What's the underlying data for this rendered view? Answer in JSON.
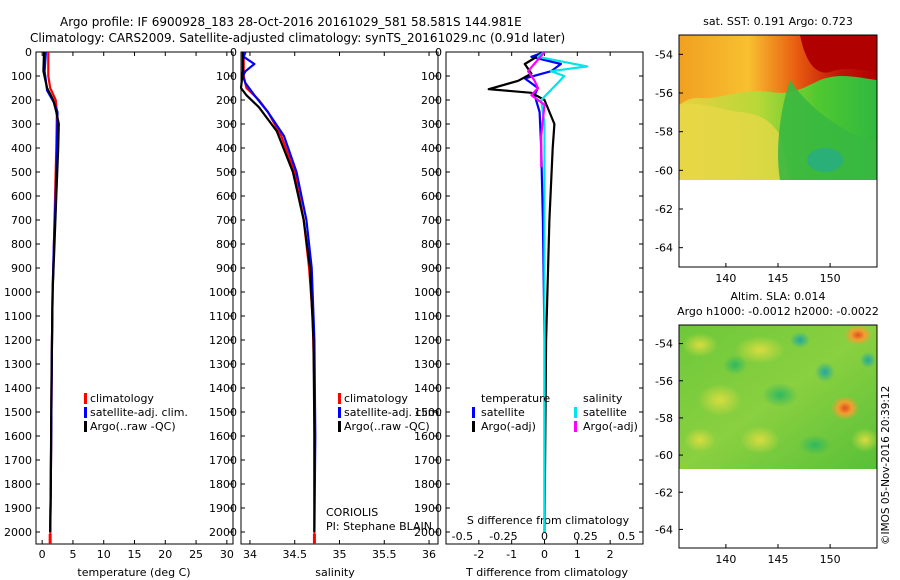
{
  "header": {
    "line1": "Argo profile: IF 6900928_183 28-Oct-2016 20161029_581 58.581S 144.981E",
    "line2": "Climatology: CARS2009. Satellite-adjusted climatology: synTS_20161029.nc (0.91d later)"
  },
  "depth_ticks": [
    "0",
    "100",
    "200",
    "300",
    "400",
    "500",
    "600",
    "700",
    "800",
    "900",
    "1000",
    "1100",
    "1200",
    "1300",
    "1400",
    "1500",
    "1600",
    "1700",
    "1800",
    "1900",
    "2000"
  ],
  "colors": {
    "climatology": "#ff0000",
    "satellite": "#0000ff",
    "argo": "#000000",
    "sat_salinity": "#00e5e5",
    "argo_salinity": "#ff00ff"
  },
  "panels": {
    "temperature": {
      "xlabel": "temperature (deg C)",
      "xticks": [
        "0",
        "5",
        "10",
        "15",
        "20",
        "25",
        "30"
      ],
      "legend": [
        "climatology",
        "satellite-adj. clim.",
        "Argo(..raw -QC)"
      ]
    },
    "salinity": {
      "xlabel": "salinity",
      "xticks": [
        "34",
        "34.5",
        "35",
        "35.5",
        "36"
      ],
      "legend": [
        "climatology",
        "satellite-adj. clim.",
        "Argo(..raw -QC)"
      ],
      "note1": "CORIOLIS",
      "note2": "PI: Stephane BLAIN"
    },
    "difference": {
      "xlabel": "T difference from climatology",
      "s_label": "S difference from climatology",
      "t_ticks": [
        "-2",
        "-1",
        "0",
        "1",
        "2"
      ],
      "s_ticks": [
        "-0.5",
        "-0.25",
        "0",
        "0.25",
        "0.5"
      ],
      "legend_temp_title": "temperature",
      "legend_sal_title": "salinity",
      "legend_temp": [
        "satellite",
        "Argo(-adj)"
      ],
      "legend_sal": [
        "satellite",
        "Argo(-adj)"
      ]
    }
  },
  "maps": {
    "sst": {
      "title": "sat. SST: 0.191  Argo: 0.723",
      "yticks": [
        "-54",
        "-56",
        "-58",
        "-60",
        "-62",
        "-64"
      ],
      "xticks": [
        "140",
        "145",
        "150"
      ]
    },
    "sla": {
      "title1": "Altim. SLA: 0.014",
      "title2": "Argo h1000: -0.0012  h2000: -0.0022",
      "yticks": [
        "-54",
        "-56",
        "-58",
        "-60",
        "-62",
        "-64"
      ],
      "xticks": [
        "140",
        "145",
        "150"
      ]
    }
  },
  "credit": "©IMOS 05-Nov-2016 20:39:12",
  "chart_data": [
    {
      "type": "line",
      "xlabel": "temperature (deg C)",
      "ylim": [
        0,
        2050
      ],
      "xlim": [
        -1,
        31
      ],
      "y_reversed": true,
      "series": [
        {
          "name": "climatology",
          "x": [
            1.0,
            1.0,
            1.3,
            2.2,
            2.4,
            2.3,
            2.1,
            1.9,
            1.7,
            1.6,
            1.5,
            1.4,
            1.3
          ],
          "y": [
            0,
            100,
            150,
            200,
            250,
            400,
            600,
            800,
            1000,
            1200,
            1500,
            1800,
            2050
          ]
        },
        {
          "name": "satellite-adj. clim.",
          "x": [
            0.6,
            0.4,
            0.8,
            1.9,
            2.5,
            2.4,
            2.2,
            1.9,
            1.7,
            1.6,
            1.5,
            1.4,
            1.3
          ],
          "y": [
            0,
            80,
            160,
            210,
            250,
            400,
            600,
            800,
            1000,
            1200,
            1500,
            1800,
            2000
          ]
        },
        {
          "name": "Argo(..raw -QC)",
          "x": [
            0.3,
            0.2,
            0.8,
            1.8,
            2.3,
            2.7,
            2.6,
            2.3,
            2.0,
            1.7,
            1.5,
            1.4,
            1.3
          ],
          "y": [
            0,
            80,
            150,
            200,
            250,
            300,
            400,
            600,
            800,
            1000,
            1400,
            1800,
            2000
          ]
        }
      ]
    },
    {
      "type": "line",
      "xlabel": "salinity",
      "ylim": [
        0,
        2050
      ],
      "xlim": [
        33.9,
        36.1
      ],
      "y_reversed": true,
      "series": [
        {
          "name": "climatology",
          "x": [
            33.93,
            33.93,
            33.96,
            34.1,
            34.2,
            34.35,
            34.5,
            34.6,
            34.66,
            34.7,
            34.72,
            34.72,
            34.72
          ],
          "y": [
            0,
            100,
            150,
            200,
            250,
            350,
            500,
            700,
            900,
            1100,
            1400,
            1800,
            2050
          ]
        },
        {
          "name": "satellite-adj. clim.",
          "x": [
            33.95,
            33.93,
            34.05,
            33.95,
            33.92,
            33.95,
            34.05,
            34.2,
            34.38,
            34.52,
            34.63,
            34.69,
            34.72,
            34.73,
            34.72
          ],
          "y": [
            0,
            20,
            50,
            80,
            100,
            130,
            180,
            250,
            350,
            500,
            700,
            900,
            1200,
            1600,
            2000
          ]
        },
        {
          "name": "Argo(..raw -QC)",
          "x": [
            33.92,
            33.92,
            33.9,
            33.96,
            34.1,
            34.3,
            34.48,
            34.6,
            34.67,
            34.71,
            34.72,
            34.72
          ],
          "y": [
            0,
            80,
            150,
            180,
            230,
            330,
            500,
            700,
            900,
            1200,
            1600,
            2000
          ]
        }
      ]
    },
    {
      "type": "line",
      "xlabel": "T difference from climatology",
      "ylim": [
        0,
        2050
      ],
      "xlim": [
        -3,
        3
      ],
      "y_reversed": true,
      "series": [
        {
          "name": "temperature satellite",
          "x": [
            0,
            -0.4,
            0.5,
            0.2,
            -0.6,
            -0.2,
            -0.3,
            -0.15,
            -0.1,
            -0.05,
            0,
            0
          ],
          "y": [
            0,
            20,
            50,
            80,
            110,
            150,
            180,
            250,
            400,
            700,
            1200,
            2000
          ]
        },
        {
          "name": "temperature Argo(-adj)",
          "x": [
            0,
            -0.6,
            -0.4,
            -0.8,
            -1.7,
            -0.4,
            0.0,
            0.3,
            0.25,
            0.15,
            0.05,
            0.0
          ],
          "y": [
            0,
            50,
            90,
            120,
            155,
            170,
            200,
            300,
            400,
            700,
            1200,
            2000
          ]
        },
        {
          "name": "salinity satellite",
          "x": [
            0,
            -0.2,
            1.3,
            0.2,
            0.6,
            0.4,
            -0.1,
            0.0,
            0.0,
            0.0
          ],
          "y": [
            0,
            20,
            60,
            80,
            100,
            130,
            200,
            300,
            800,
            2000
          ]
        },
        {
          "name": "salinity Argo(-adj)",
          "x": [
            0,
            -0.5,
            -0.3,
            -0.2,
            -0.4,
            0.0,
            -0.1,
            -0.1
          ],
          "y": [
            0,
            80,
            120,
            150,
            180,
            220,
            350,
            480
          ]
        }
      ]
    }
  ]
}
